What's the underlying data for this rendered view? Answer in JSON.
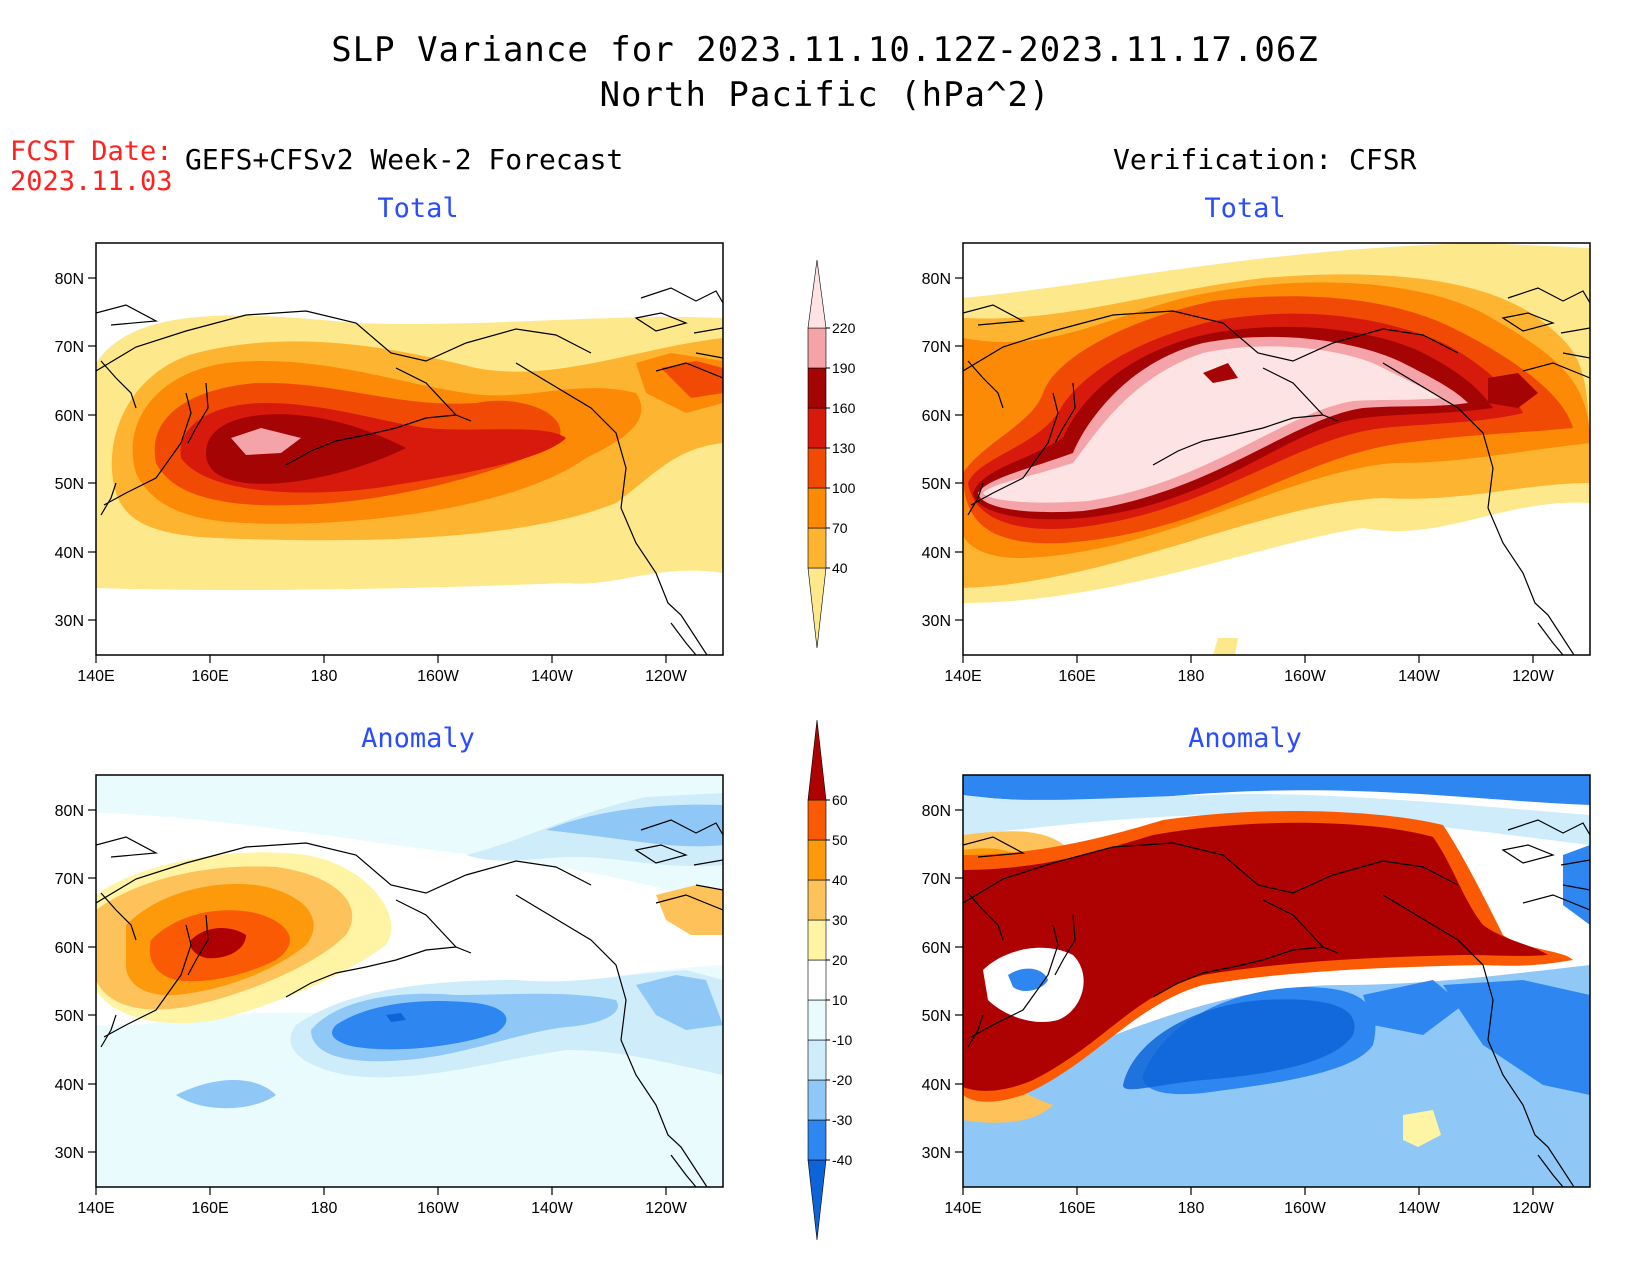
{
  "title": {
    "line1": "SLP Variance for 2023.11.10.12Z-2023.11.17.06Z",
    "line2": "North Pacific (hPa^2)"
  },
  "forecast_date": {
    "label": "FCST Date:",
    "value": "2023.11.03"
  },
  "left_header": "GEFS+CFSv2 Week-2 Forecast",
  "right_header": "Verification: CFSR",
  "panels": [
    {
      "id": "fcst-total",
      "subtitle": "Total"
    },
    {
      "id": "obs-total",
      "subtitle": "Total"
    },
    {
      "id": "fcst-anom",
      "subtitle": "Anomaly"
    },
    {
      "id": "obs-anom",
      "subtitle": "Anomaly"
    }
  ],
  "axes": {
    "lat_labels": [
      "80N",
      "70N",
      "60N",
      "50N",
      "40N",
      "30N"
    ],
    "lon_labels": [
      "140E",
      "160E",
      "180",
      "160W",
      "140W",
      "120W"
    ]
  },
  "total_colorbar": {
    "levels": [
      "40",
      "70",
      "100",
      "130",
      "160",
      "190",
      "220"
    ],
    "colors": [
      "#fde98c",
      "#fdb431",
      "#fc8a06",
      "#f14a04",
      "#d71a0c",
      "#a50404",
      "#f4a3a8",
      "#fde3e3"
    ]
  },
  "anomaly_colorbar": {
    "levels": [
      "-40",
      "-30",
      "-20",
      "-10",
      "10",
      "20",
      "30",
      "40",
      "50",
      "60"
    ],
    "colors": [
      "#0d64d8",
      "#2e86f0",
      "#8fc7f7",
      "#cfecfb",
      "#e9fbfd",
      "#ffffff",
      "#fef4a4",
      "#fdc25a",
      "#fd9a0c",
      "#fb5a04",
      "#ae0202"
    ]
  },
  "colors": {
    "subtitle": "#2a4cff",
    "forecast_date": "#ff2020"
  }
}
